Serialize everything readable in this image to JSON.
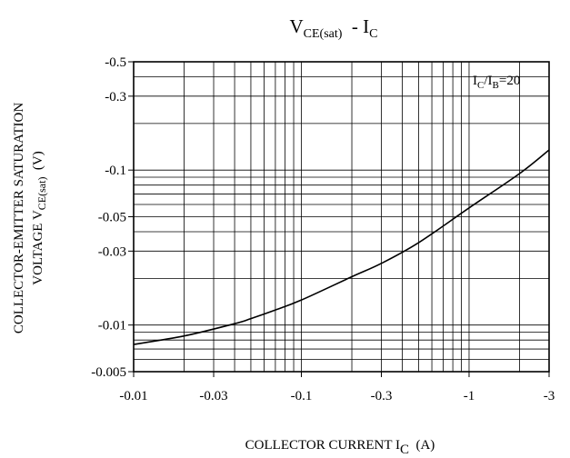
{
  "chart_data": {
    "type": "line",
    "title_main": "V",
    "title_sub": "CE(sat)",
    "title_mid": "  - I",
    "title_sub2": "C",
    "xlabel_main": "COLLECTOR CURRENT I",
    "xlabel_sub": "C",
    "xlabel_unit": "  (A)",
    "ylabel_line1": "COLLECTOR-EMITTER SATURATION",
    "ylabel_line2_main": "VOLTAGE V",
    "ylabel_line2_sub": "CE(sat)",
    "ylabel_line2_unit": "  (V)",
    "annotation": {
      "p1": "I",
      "s1": "C",
      "p2": "/I",
      "s2": "B",
      "p3": "=20"
    },
    "x_scale": "log",
    "y_scale": "log",
    "xlim": [
      0.01,
      3
    ],
    "ylim": [
      0.005,
      0.5
    ],
    "x_ticks": [
      {
        "value": 0.01,
        "label": "-0.01"
      },
      {
        "value": 0.03,
        "label": "-0.03"
      },
      {
        "value": 0.1,
        "label": "-0.1"
      },
      {
        "value": 0.3,
        "label": "-0.3"
      },
      {
        "value": 1,
        "label": "-1"
      },
      {
        "value": 3,
        "label": "-3"
      }
    ],
    "y_ticks": [
      {
        "value": 0.5,
        "label": "-0.5"
      },
      {
        "value": 0.3,
        "label": "-0.3"
      },
      {
        "value": 0.1,
        "label": "-0.1"
      },
      {
        "value": 0.05,
        "label": "-0.05"
      },
      {
        "value": 0.03,
        "label": "-0.03"
      },
      {
        "value": 0.01,
        "label": "-0.01"
      },
      {
        "value": 0.005,
        "label": "-0.005"
      }
    ],
    "x_grid": [
      0.02,
      0.03,
      0.04,
      0.05,
      0.06,
      0.07,
      0.08,
      0.09,
      0.1,
      0.2,
      0.3,
      0.4,
      0.5,
      0.6,
      0.7,
      0.8,
      0.9,
      1,
      2
    ],
    "y_grid": [
      0.006,
      0.007,
      0.008,
      0.009,
      0.01,
      0.02,
      0.03,
      0.04,
      0.05,
      0.06,
      0.07,
      0.08,
      0.09,
      0.1,
      0.2,
      0.3,
      0.4
    ],
    "grid": true,
    "series": [
      {
        "x": [
          0.01,
          0.02,
          0.04,
          0.05,
          0.07,
          0.1,
          0.2,
          0.3,
          0.5,
          1,
          2,
          3
        ],
        "y": [
          0.0075,
          0.0085,
          0.0102,
          0.011,
          0.0125,
          0.0145,
          0.0205,
          0.025,
          0.034,
          0.057,
          0.095,
          0.135
        ]
      }
    ]
  }
}
